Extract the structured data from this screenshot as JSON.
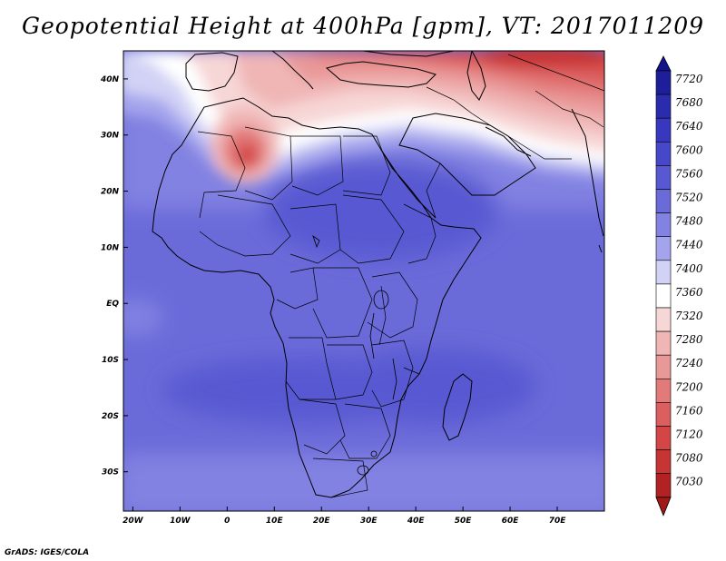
{
  "title": "Geopotential Height at 400hPa [gpm], VT: 2017011209",
  "credit": "GrADS: IGES/COLA",
  "map": {
    "lon_range": [
      -22,
      80
    ],
    "lat_range": [
      -37,
      45
    ],
    "lon_ticks": [
      {
        "lon": -20,
        "label": "20W"
      },
      {
        "lon": -10,
        "label": "10W"
      },
      {
        "lon": 0,
        "label": "0"
      },
      {
        "lon": 10,
        "label": "10E"
      },
      {
        "lon": 20,
        "label": "20E"
      },
      {
        "lon": 30,
        "label": "30E"
      },
      {
        "lon": 40,
        "label": "40E"
      },
      {
        "lon": 50,
        "label": "50E"
      },
      {
        "lon": 60,
        "label": "60E"
      },
      {
        "lon": 70,
        "label": "70E"
      }
    ],
    "lat_ticks": [
      {
        "lat": 40,
        "label": "40N"
      },
      {
        "lat": 30,
        "label": "30N"
      },
      {
        "lat": 20,
        "label": "20N"
      },
      {
        "lat": 10,
        "label": "10N"
      },
      {
        "lat": 0,
        "label": "EQ"
      },
      {
        "lat": -10,
        "label": "10S"
      },
      {
        "lat": -20,
        "label": "20S"
      },
      {
        "lat": -30,
        "label": "30S"
      }
    ]
  },
  "legend": {
    "levels": [
      {
        "label": "7720",
        "color": "#1e1e9a"
      },
      {
        "label": "7680",
        "color": "#2b2bae"
      },
      {
        "label": "7640",
        "color": "#3838be"
      },
      {
        "label": "7600",
        "color": "#4747c9"
      },
      {
        "label": "7560",
        "color": "#5858d2"
      },
      {
        "label": "7520",
        "color": "#6a6ad9"
      },
      {
        "label": "7480",
        "color": "#8282e2"
      },
      {
        "label": "7440",
        "color": "#a4a4ec"
      },
      {
        "label": "7400",
        "color": "#d2d2f6"
      },
      {
        "label": "7360",
        "color": "#ffffff"
      },
      {
        "label": "7320",
        "color": "#f7d6d6"
      },
      {
        "label": "7280",
        "color": "#f0b6b6"
      },
      {
        "label": "7240",
        "color": "#e99898"
      },
      {
        "label": "7200",
        "color": "#e27a7a"
      },
      {
        "label": "7160",
        "color": "#dc5f5f"
      },
      {
        "label": "7120",
        "color": "#d44646"
      },
      {
        "label": "7080",
        "color": "#c63434"
      },
      {
        "label": "7030",
        "color": "#b22222"
      }
    ],
    "top_arrow_color": "#14148c",
    "bottom_arrow_color": "#a01a1a"
  }
}
